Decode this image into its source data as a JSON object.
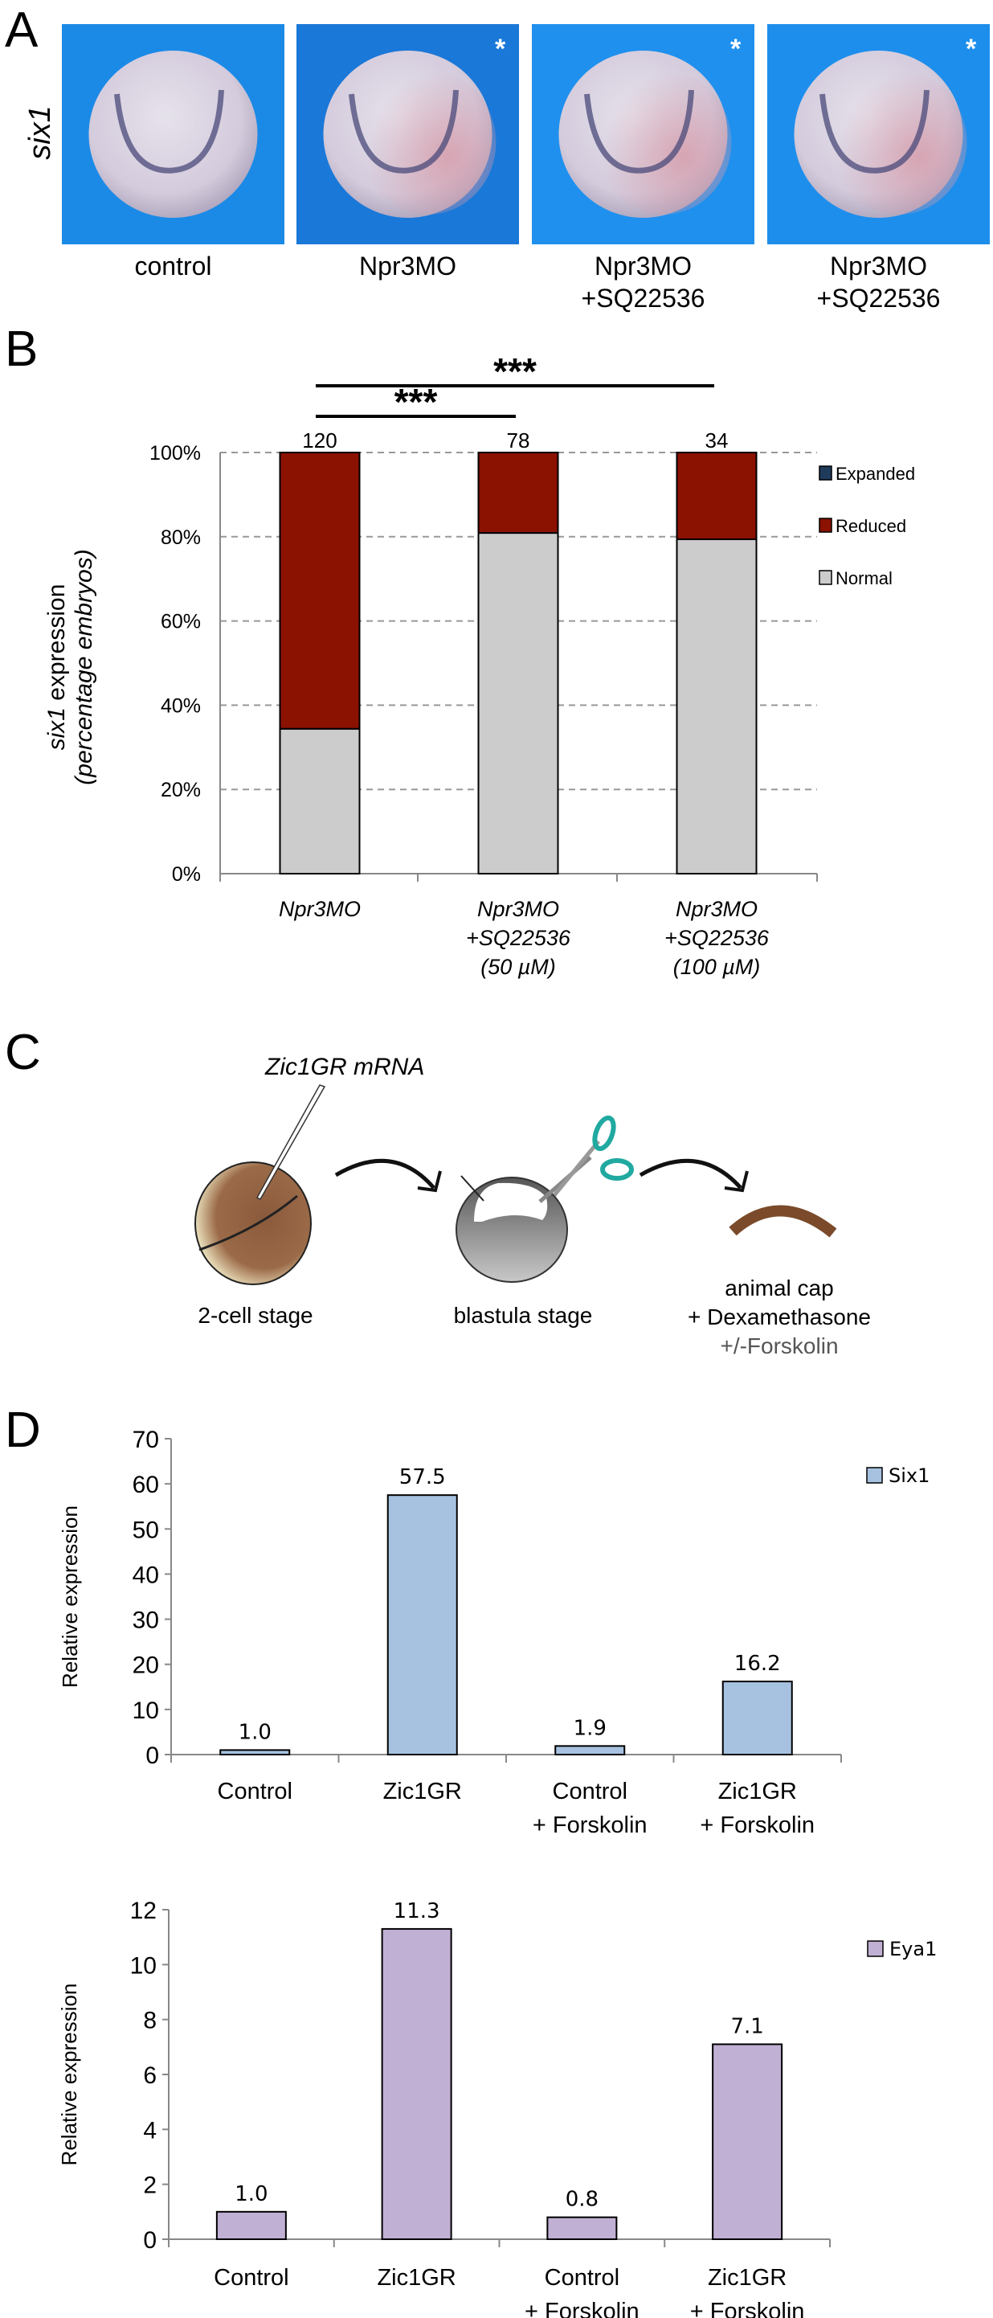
{
  "panels": {
    "a": "A",
    "b": "B",
    "c": "C",
    "d": "D"
  },
  "panel_a": {
    "row_label": "six1",
    "asterisk": "*",
    "images": [
      {
        "caption": [
          "control"
        ],
        "marked": false
      },
      {
        "caption": [
          "Npr3MO"
        ],
        "marked": true
      },
      {
        "caption": [
          "Npr3MO",
          "+SQ22536"
        ],
        "marked": true
      },
      {
        "caption": [
          "Npr3MO",
          "+SQ22536"
        ],
        "marked": true
      }
    ]
  },
  "panel_c": {
    "injection_label": "Zic1GR mRNA",
    "stage1": "2-cell stage",
    "stage2": "blastula stage",
    "result": [
      "animal cap",
      "+ Dexamethasone",
      "+/-Forskolin"
    ]
  },
  "chart_data": [
    {
      "type": "bar",
      "stacked": true,
      "categories": [
        [
          "Npr3MO"
        ],
        [
          "Npr3MO",
          "+SQ22536",
          "(50 µM)"
        ],
        [
          "Npr3MO",
          "+SQ22536",
          "(100 µM)"
        ]
      ],
      "series": [
        {
          "name": "Normal",
          "values": [
            34.4,
            80.9,
            79.4
          ],
          "color": "#cccccc"
        },
        {
          "name": "Reduced",
          "values": [
            65.6,
            19.1,
            20.6
          ],
          "color": "#8b1100"
        },
        {
          "name": "Expanded",
          "values": [
            0,
            0,
            0
          ],
          "color": "#1f3b5c"
        }
      ],
      "n_labels": [
        "120",
        "78",
        "34"
      ],
      "significance": [
        {
          "from": 0,
          "to": 1,
          "label": "***"
        },
        {
          "from": 0,
          "to": 2,
          "label": "***"
        }
      ],
      "ylabel": {
        "gene": "six1",
        "text": " expression",
        "line2": "(percentage embryos)"
      },
      "yticks": [
        "0%",
        "20%",
        "40%",
        "60%",
        "80%",
        "100%"
      ],
      "ylim": [
        0,
        100
      ],
      "grid": "dashed horizontal",
      "legend": [
        "Expanded",
        "Reduced",
        "Normal"
      ],
      "legend_position": "right"
    },
    {
      "type": "bar",
      "categories": [
        [
          "Control"
        ],
        [
          "Zic1GR"
        ],
        [
          "Control",
          "+ Forskolin"
        ],
        [
          "Zic1GR",
          "+ Forskolin"
        ]
      ],
      "series": [
        {
          "name": "Six1",
          "values": [
            1.0,
            57.5,
            1.9,
            16.2
          ],
          "color": "#a7c2e0"
        }
      ],
      "value_labels": [
        "1.0",
        "57.5",
        "1.9",
        "16.2"
      ],
      "ylabel": "Relative expression",
      "yticks": [
        "0",
        "10",
        "20",
        "30",
        "40",
        "50",
        "60",
        "70"
      ],
      "ylim": [
        0,
        70
      ],
      "legend_position": "right"
    },
    {
      "type": "bar",
      "categories": [
        [
          "Control"
        ],
        [
          "Zic1GR"
        ],
        [
          "Control",
          "+ Forskolin"
        ],
        [
          "Zic1GR",
          "+ Forskolin"
        ]
      ],
      "series": [
        {
          "name": "Eya1",
          "values": [
            1.0,
            11.3,
            0.8,
            7.1
          ],
          "color": "#c0b0d3"
        }
      ],
      "value_labels": [
        "1.0",
        "11.3",
        "0.8",
        "7.1"
      ],
      "ylabel": "Relative expression",
      "yticks": [
        "0",
        "2",
        "4",
        "6",
        "8",
        "10",
        "12"
      ],
      "ylim": [
        0,
        12
      ],
      "legend_position": "right"
    }
  ]
}
